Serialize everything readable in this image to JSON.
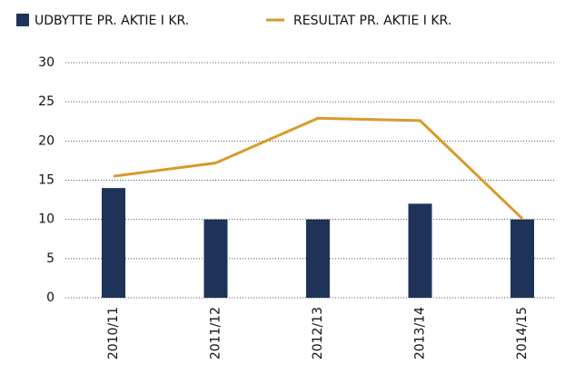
{
  "chart_data": {
    "type": "bar_line",
    "categories": [
      "2010/11",
      "2011/12",
      "2012/13",
      "2013/14",
      "2014/15"
    ],
    "series": [
      {
        "name": "UDBYTTE PR. AKTIE I KR.",
        "type": "bar",
        "color": "#1f3358",
        "values": [
          14,
          10,
          10,
          12,
          10
        ]
      },
      {
        "name": "RESULTAT PR. AKTIE I KR.",
        "type": "line",
        "color": "#d89a2a",
        "values": [
          15.5,
          17.2,
          22.9,
          22.6,
          10.1
        ]
      }
    ],
    "ylim": [
      0,
      30
    ],
    "yticks": [
      0,
      5,
      10,
      15,
      20,
      25,
      30
    ],
    "grid": true,
    "legend": "top"
  }
}
